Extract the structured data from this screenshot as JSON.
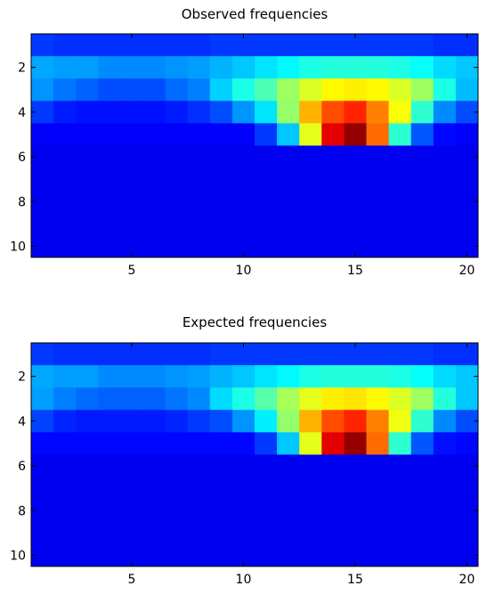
{
  "chart_data": [
    {
      "type": "heatmap",
      "title": "Observed frequencies",
      "xlim": [
        0.5,
        20.5
      ],
      "ylim": [
        10.5,
        0.5
      ],
      "xticks": [
        5,
        10,
        15,
        20
      ],
      "yticks": [
        2,
        4,
        6,
        8,
        10
      ],
      "colormap": "jet",
      "value_range": [
        0,
        1
      ],
      "values": [
        [
          0.18,
          0.17,
          0.17,
          0.17,
          0.17,
          0.17,
          0.17,
          0.17,
          0.18,
          0.18,
          0.18,
          0.18,
          0.18,
          0.18,
          0.18,
          0.18,
          0.18,
          0.18,
          0.17,
          0.17
        ],
        [
          0.29,
          0.28,
          0.28,
          0.26,
          0.26,
          0.26,
          0.27,
          0.28,
          0.3,
          0.32,
          0.35,
          0.37,
          0.4,
          0.41,
          0.41,
          0.41,
          0.4,
          0.38,
          0.34,
          0.32
        ],
        [
          0.27,
          0.24,
          0.22,
          0.2,
          0.2,
          0.2,
          0.23,
          0.25,
          0.33,
          0.4,
          0.45,
          0.53,
          0.59,
          0.63,
          0.64,
          0.63,
          0.59,
          0.53,
          0.4,
          0.31
        ],
        [
          0.18,
          0.15,
          0.14,
          0.14,
          0.14,
          0.14,
          0.15,
          0.17,
          0.2,
          0.27,
          0.35,
          0.52,
          0.7,
          0.8,
          0.84,
          0.75,
          0.62,
          0.42,
          0.26,
          0.2
        ],
        [
          0.12,
          0.12,
          0.12,
          0.12,
          0.12,
          0.12,
          0.12,
          0.12,
          0.12,
          0.12,
          0.18,
          0.32,
          0.6,
          0.9,
          0.98,
          0.77,
          0.42,
          0.21,
          0.13,
          0.12
        ],
        [
          0.11,
          0.11,
          0.11,
          0.11,
          0.11,
          0.11,
          0.11,
          0.11,
          0.11,
          0.11,
          0.11,
          0.11,
          0.11,
          0.11,
          0.11,
          0.11,
          0.11,
          0.11,
          0.11,
          0.11
        ],
        [
          0.11,
          0.11,
          0.11,
          0.11,
          0.11,
          0.11,
          0.11,
          0.11,
          0.11,
          0.11,
          0.11,
          0.11,
          0.11,
          0.11,
          0.11,
          0.11,
          0.11,
          0.11,
          0.11,
          0.11
        ],
        [
          0.11,
          0.11,
          0.11,
          0.11,
          0.11,
          0.11,
          0.11,
          0.11,
          0.11,
          0.11,
          0.11,
          0.11,
          0.11,
          0.11,
          0.11,
          0.11,
          0.11,
          0.11,
          0.11,
          0.11
        ],
        [
          0.11,
          0.11,
          0.11,
          0.11,
          0.11,
          0.11,
          0.11,
          0.11,
          0.11,
          0.11,
          0.11,
          0.11,
          0.11,
          0.11,
          0.11,
          0.11,
          0.11,
          0.11,
          0.11,
          0.11
        ],
        [
          0.11,
          0.11,
          0.11,
          0.11,
          0.11,
          0.11,
          0.11,
          0.11,
          0.11,
          0.11,
          0.11,
          0.11,
          0.11,
          0.11,
          0.11,
          0.11,
          0.11,
          0.11,
          0.11,
          0.11
        ]
      ]
    },
    {
      "type": "heatmap",
      "title": "Expected frequencies",
      "xlim": [
        0.5,
        20.5
      ],
      "ylim": [
        10.5,
        0.5
      ],
      "xticks": [
        5,
        10,
        15,
        20
      ],
      "yticks": [
        2,
        4,
        6,
        8,
        10
      ],
      "colormap": "jet",
      "value_range": [
        0,
        1
      ],
      "values": [
        [
          0.18,
          0.17,
          0.17,
          0.17,
          0.17,
          0.17,
          0.17,
          0.17,
          0.18,
          0.18,
          0.18,
          0.18,
          0.18,
          0.18,
          0.18,
          0.18,
          0.18,
          0.18,
          0.17,
          0.17
        ],
        [
          0.29,
          0.28,
          0.28,
          0.26,
          0.26,
          0.26,
          0.27,
          0.28,
          0.3,
          0.32,
          0.35,
          0.37,
          0.4,
          0.41,
          0.41,
          0.41,
          0.4,
          0.38,
          0.34,
          0.32
        ],
        [
          0.28,
          0.25,
          0.23,
          0.22,
          0.22,
          0.22,
          0.24,
          0.26,
          0.34,
          0.4,
          0.46,
          0.54,
          0.6,
          0.64,
          0.65,
          0.63,
          0.59,
          0.53,
          0.41,
          0.32
        ],
        [
          0.19,
          0.16,
          0.15,
          0.15,
          0.15,
          0.15,
          0.16,
          0.18,
          0.2,
          0.27,
          0.36,
          0.52,
          0.7,
          0.8,
          0.84,
          0.75,
          0.61,
          0.42,
          0.26,
          0.2
        ],
        [
          0.13,
          0.13,
          0.13,
          0.13,
          0.13,
          0.13,
          0.13,
          0.13,
          0.13,
          0.13,
          0.18,
          0.32,
          0.6,
          0.9,
          0.98,
          0.77,
          0.42,
          0.21,
          0.14,
          0.13
        ],
        [
          0.11,
          0.11,
          0.11,
          0.11,
          0.11,
          0.11,
          0.11,
          0.11,
          0.11,
          0.11,
          0.11,
          0.11,
          0.11,
          0.11,
          0.11,
          0.11,
          0.11,
          0.11,
          0.11,
          0.11
        ],
        [
          0.11,
          0.11,
          0.11,
          0.11,
          0.11,
          0.11,
          0.11,
          0.11,
          0.11,
          0.11,
          0.11,
          0.11,
          0.11,
          0.11,
          0.11,
          0.11,
          0.11,
          0.11,
          0.11,
          0.11
        ],
        [
          0.11,
          0.11,
          0.11,
          0.11,
          0.11,
          0.11,
          0.11,
          0.11,
          0.11,
          0.11,
          0.11,
          0.11,
          0.11,
          0.11,
          0.11,
          0.11,
          0.11,
          0.11,
          0.11,
          0.11
        ],
        [
          0.11,
          0.11,
          0.11,
          0.11,
          0.11,
          0.11,
          0.11,
          0.11,
          0.11,
          0.11,
          0.11,
          0.11,
          0.11,
          0.11,
          0.11,
          0.11,
          0.11,
          0.11,
          0.11,
          0.11
        ],
        [
          0.11,
          0.11,
          0.11,
          0.11,
          0.11,
          0.11,
          0.11,
          0.11,
          0.11,
          0.11,
          0.11,
          0.11,
          0.11,
          0.11,
          0.11,
          0.11,
          0.11,
          0.11,
          0.11,
          0.11
        ]
      ]
    }
  ]
}
